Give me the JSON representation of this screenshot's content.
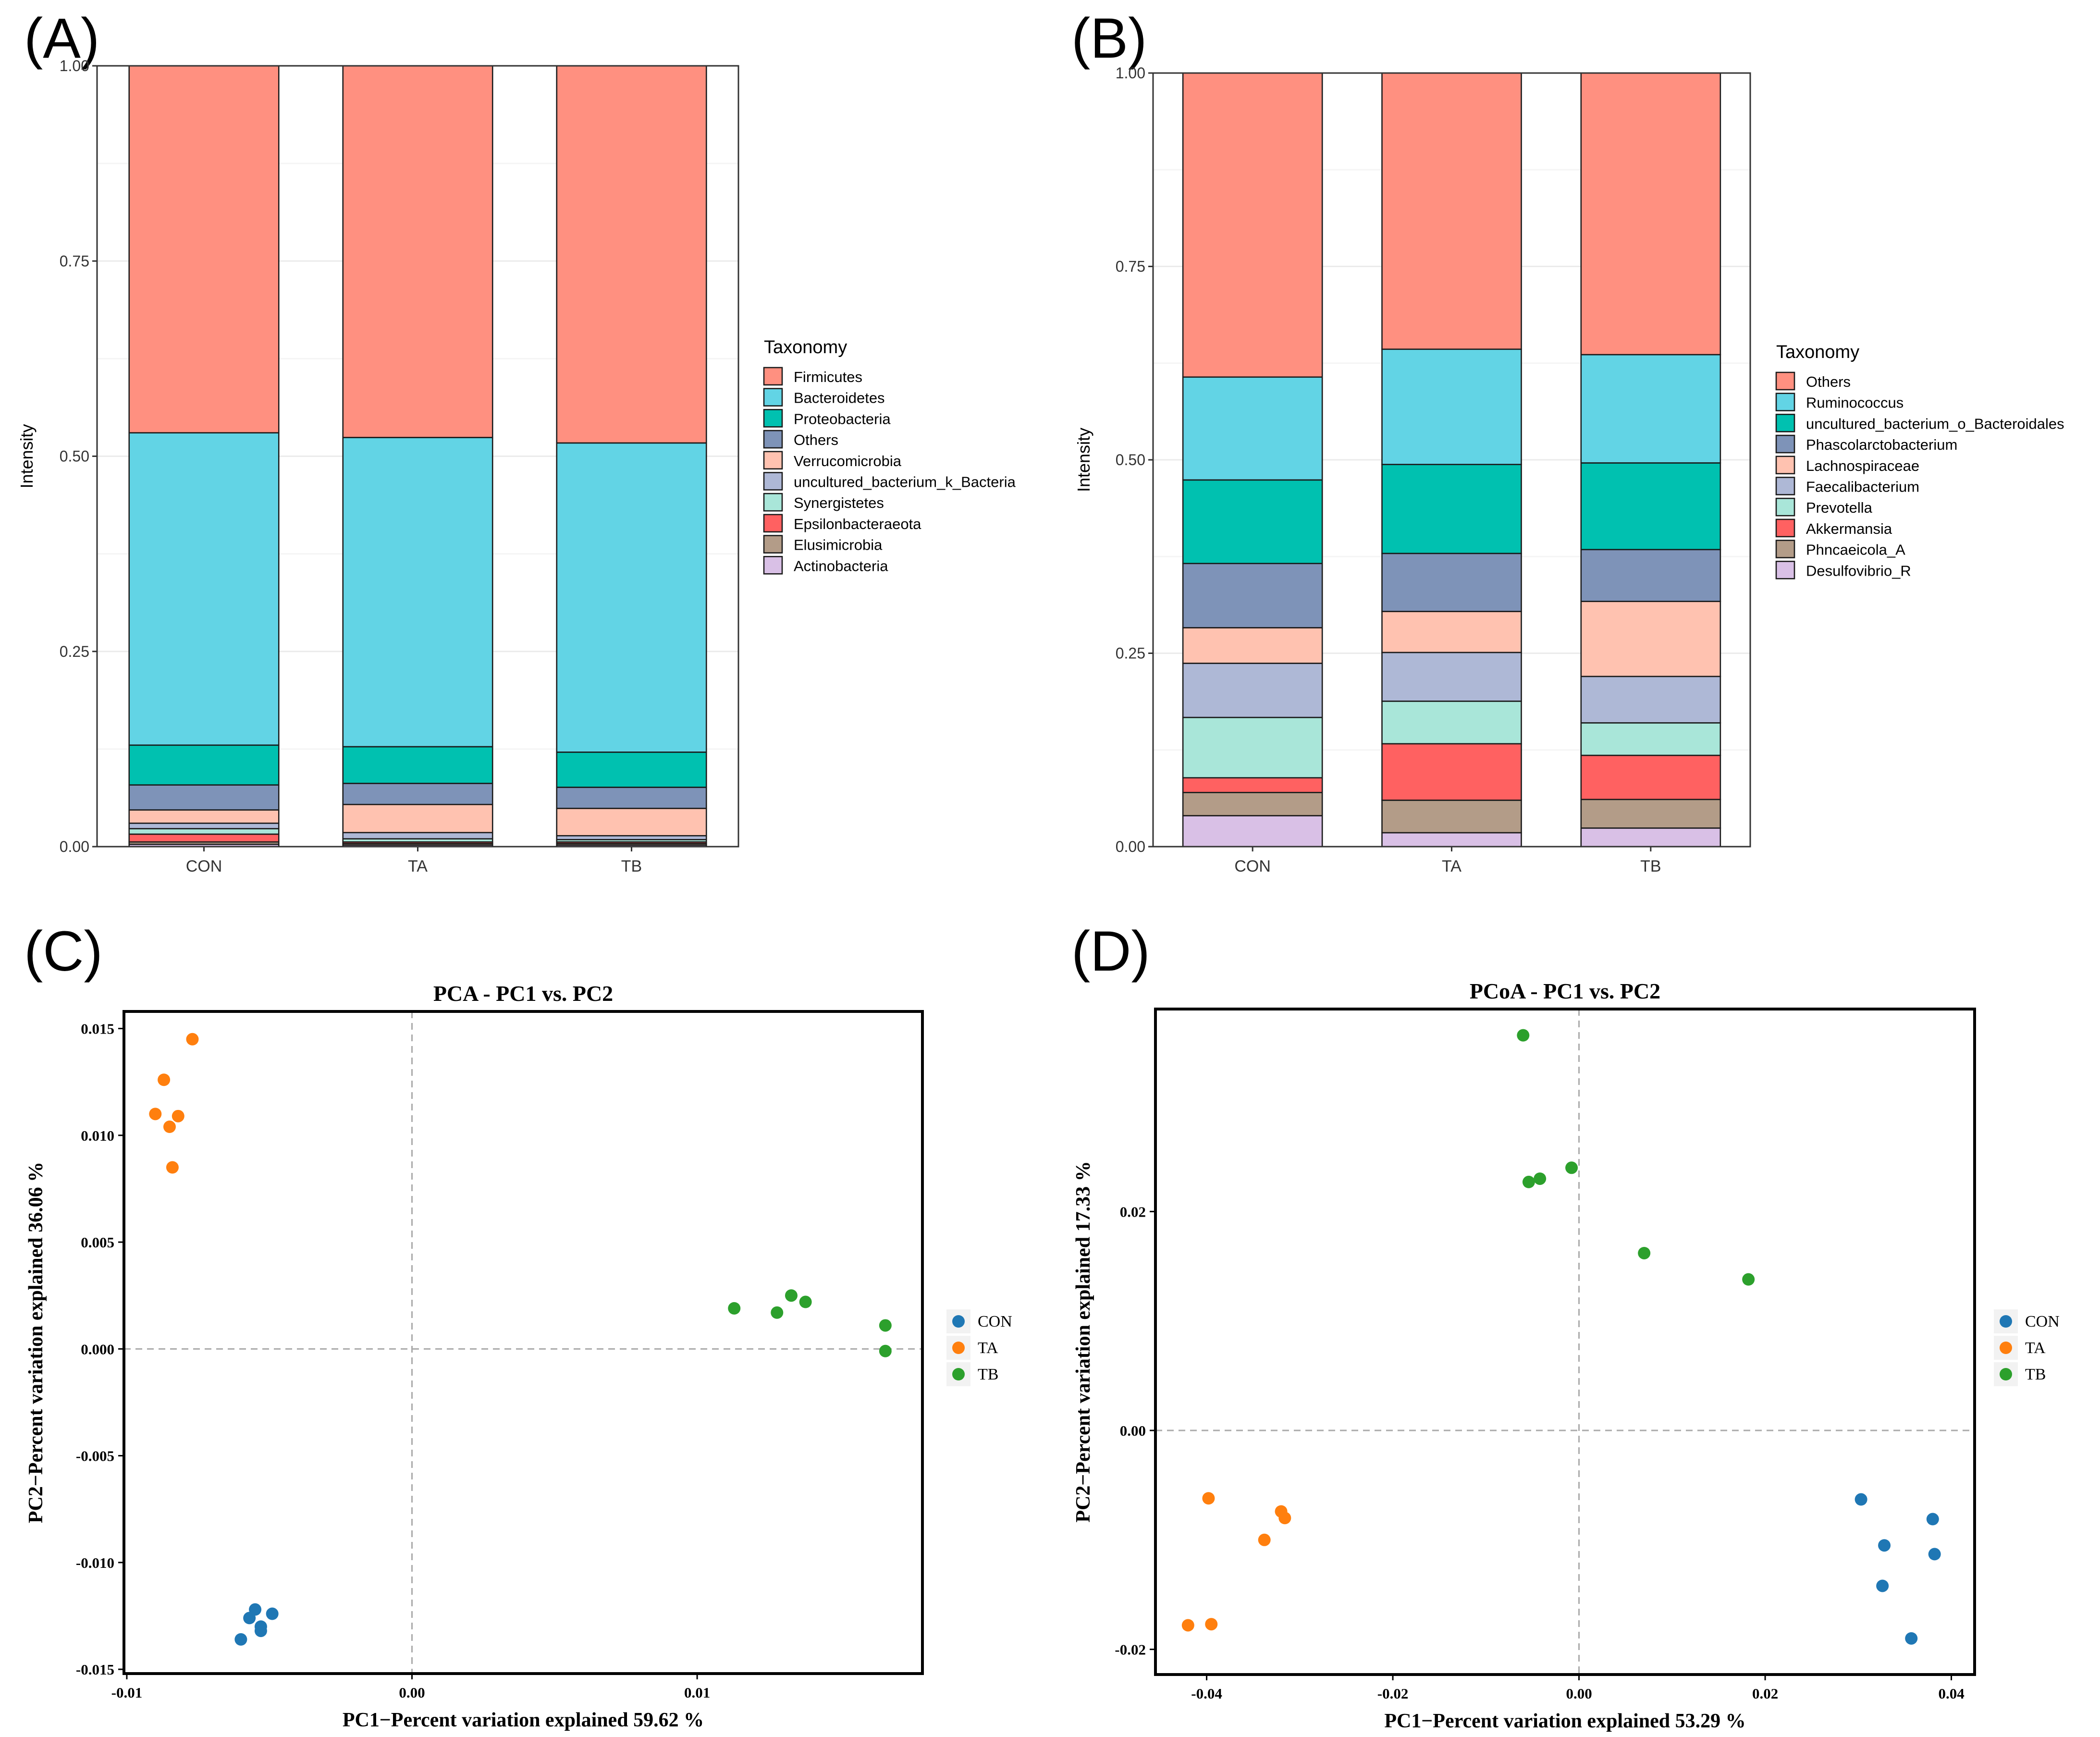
{
  "panels": {
    "A": {
      "label": "(A)"
    },
    "B": {
      "label": "(B)"
    },
    "C": {
      "label": "(C)"
    },
    "D": {
      "label": "(D)"
    }
  },
  "chart_data": [
    {
      "id": "A",
      "type": "bar",
      "stacked": true,
      "categories": [
        "CON",
        "TA",
        "TB"
      ],
      "ylabel": "Intensity",
      "ylim": [
        0,
        1
      ],
      "yticks": [
        "0.00",
        "0.25",
        "0.50",
        "0.75",
        "1.00"
      ],
      "legend_title": "Taxonomy",
      "legend_position": "right",
      "series": [
        {
          "name": "Actinobacteria",
          "color": "#D9C0E6",
          "values": [
            0.003,
            0.002,
            0.002
          ]
        },
        {
          "name": "Elusimicrobia",
          "color": "#B39C88",
          "values": [
            0.003,
            0.002,
            0.002
          ]
        },
        {
          "name": "Epsilonbacteraeota",
          "color": "#FF6161",
          "values": [
            0.01,
            0.002,
            0.002
          ]
        },
        {
          "name": "Synergistetes",
          "color": "#A9E6D9",
          "values": [
            0.007,
            0.004,
            0.003
          ]
        },
        {
          "name": "uncultured_bacterium_k_Bacteria",
          "color": "#AEB8D6",
          "values": [
            0.007,
            0.008,
            0.005
          ]
        },
        {
          "name": "Verrucomicrobia",
          "color": "#FFC2B0",
          "values": [
            0.017,
            0.036,
            0.035
          ]
        },
        {
          "name": "Others",
          "color": "#7E93B8",
          "values": [
            0.032,
            0.027,
            0.027
          ]
        },
        {
          "name": "Proteobacteria",
          "color": "#00C1B0",
          "values": [
            0.051,
            0.047,
            0.045
          ]
        },
        {
          "name": "Bacteroidetes",
          "color": "#62D4E5",
          "values": [
            0.4,
            0.396,
            0.396
          ]
        },
        {
          "name": "Firmicutes",
          "color": "#FF9080",
          "values": [
            0.47,
            0.476,
            0.483
          ]
        }
      ],
      "legend_order": [
        "Firmicutes",
        "Bacteroidetes",
        "Proteobacteria",
        "Others",
        "Verrucomicrobia",
        "uncultured_bacterium_k_Bacteria",
        "Synergistetes",
        "Epsilonbacteraeota",
        "Elusimicrobia",
        "Actinobacteria"
      ]
    },
    {
      "id": "B",
      "type": "bar",
      "stacked": true,
      "categories": [
        "CON",
        "TA",
        "TB"
      ],
      "ylabel": "Intensity",
      "ylim": [
        0,
        1
      ],
      "yticks": [
        "0.00",
        "0.25",
        "0.50",
        "0.75",
        "1.00"
      ],
      "legend_title": "Taxonomy",
      "legend_position": "right",
      "series": [
        {
          "name": "Desulfovibrio_R",
          "color": "#D9C0E6",
          "values": [
            0.04,
            0.018,
            0.024
          ]
        },
        {
          "name": "Phncaeicola_A",
          "color": "#B39C88",
          "values": [
            0.03,
            0.042,
            0.037
          ]
        },
        {
          "name": "Akkermansia",
          "color": "#FF6161",
          "values": [
            0.019,
            0.073,
            0.057
          ]
        },
        {
          "name": "Prevotella",
          "color": "#A9E6D9",
          "values": [
            0.078,
            0.055,
            0.042
          ]
        },
        {
          "name": "Faecalibacterium",
          "color": "#AEB8D6",
          "values": [
            0.07,
            0.063,
            0.06
          ]
        },
        {
          "name": "Lachnospiraceae",
          "color": "#FFC2B0",
          "values": [
            0.046,
            0.053,
            0.097
          ]
        },
        {
          "name": "Phascolarctobacterium",
          "color": "#7E93B8",
          "values": [
            0.083,
            0.075,
            0.067
          ]
        },
        {
          "name": "uncultured_bacterium_o_Bacteroidales",
          "color": "#00C1B0",
          "values": [
            0.108,
            0.115,
            0.112
          ]
        },
        {
          "name": "Ruminococcus",
          "color": "#62D4E5",
          "values": [
            0.133,
            0.149,
            0.14
          ]
        },
        {
          "name": "Others",
          "color": "#FF9080",
          "values": [
            0.393,
            0.357,
            0.364
          ]
        }
      ],
      "legend_order": [
        "Others",
        "Ruminococcus",
        "uncultured_bacterium_o_Bacteroidales",
        "Phascolarctobacterium",
        "Lachnospiraceae",
        "Faecalibacterium",
        "Prevotella",
        "Akkermansia",
        "Phncaeicola_A",
        "Desulfovibrio_R"
      ]
    },
    {
      "id": "C",
      "type": "scatter",
      "title": "PCA - PC1 vs. PC2",
      "xlabel": "PC1−Percent variation explained 59.62 %",
      "ylabel": "PC2−Percent variation explained 36.06 %",
      "xlim": [
        -0.0101,
        0.0179
      ],
      "ylim": [
        -0.0152,
        0.0158
      ],
      "xticks": [
        -0.01,
        0.0,
        0.01
      ],
      "xtick_labels": [
        "-0.01",
        "0.00",
        "0.01"
      ],
      "yticks": [
        -0.015,
        -0.01,
        -0.005,
        0.0,
        0.005,
        0.01,
        0.015
      ],
      "ytick_labels": [
        "-0.015",
        "-0.010",
        "-0.005",
        "0.000",
        "0.005",
        "0.010",
        "0.015"
      ],
      "zero_lines": true,
      "legend_position": "right",
      "series": [
        {
          "name": "CON",
          "color": "#1F77B4",
          "points": [
            [
              -0.006,
              -0.0136
            ],
            [
              -0.0057,
              -0.0126
            ],
            [
              -0.0055,
              -0.0122
            ],
            [
              -0.0053,
              -0.013
            ],
            [
              -0.0053,
              -0.0132
            ],
            [
              -0.0049,
              -0.0124
            ]
          ]
        },
        {
          "name": "TA",
          "color": "#FF7F0E",
          "points": [
            [
              -0.009,
              0.011
            ],
            [
              -0.0087,
              0.0126
            ],
            [
              -0.0085,
              0.0104
            ],
            [
              -0.0084,
              0.0085
            ],
            [
              -0.0082,
              0.0109
            ],
            [
              -0.0077,
              0.0145
            ]
          ]
        },
        {
          "name": "TB",
          "color": "#2CA02C",
          "points": [
            [
              0.0113,
              0.0019
            ],
            [
              0.0128,
              0.0017
            ],
            [
              0.0133,
              0.0025
            ],
            [
              0.0138,
              0.0022
            ],
            [
              0.0166,
              0.0011
            ],
            [
              0.0166,
              -0.0001
            ]
          ]
        }
      ]
    },
    {
      "id": "D",
      "type": "scatter",
      "title": "PCoA - PC1 vs. PC2",
      "xlabel": "PC1−Percent variation explained 53.29 %",
      "ylabel": "PC2−Percent variation explained 17.33 %",
      "xlim": [
        -0.0455,
        0.0425
      ],
      "ylim": [
        -0.0223,
        0.0385
      ],
      "xticks": [
        -0.04,
        -0.02,
        0.0,
        0.02,
        0.04
      ],
      "xtick_labels": [
        "-0.04",
        "-0.02",
        "0.00",
        "0.02",
        "0.04"
      ],
      "yticks": [
        -0.02,
        0.0,
        0.02
      ],
      "ytick_labels": [
        "-0.02",
        "0.00",
        "0.02"
      ],
      "zero_lines": true,
      "legend_position": "right",
      "series": [
        {
          "name": "CON",
          "color": "#1F77B4",
          "points": [
            [
              0.0303,
              -0.0063
            ],
            [
              0.0328,
              -0.0105
            ],
            [
              0.0326,
              -0.0142
            ],
            [
              0.0357,
              -0.019
            ],
            [
              0.038,
              -0.0081
            ],
            [
              0.0382,
              -0.0113
            ]
          ]
        },
        {
          "name": "TA",
          "color": "#FF7F0E",
          "points": [
            [
              -0.042,
              -0.0178
            ],
            [
              -0.0395,
              -0.0177
            ],
            [
              -0.0398,
              -0.0062
            ],
            [
              -0.0338,
              -0.01
            ],
            [
              -0.032,
              -0.0074
            ],
            [
              -0.0316,
              -0.008
            ]
          ]
        },
        {
          "name": "TB",
          "color": "#2CA02C",
          "points": [
            [
              -0.006,
              0.0361
            ],
            [
              -0.0054,
              0.0227
            ],
            [
              -0.0042,
              0.023
            ],
            [
              -0.0008,
              0.024
            ],
            [
              0.007,
              0.0162
            ],
            [
              0.0182,
              0.0138
            ]
          ]
        }
      ]
    }
  ]
}
